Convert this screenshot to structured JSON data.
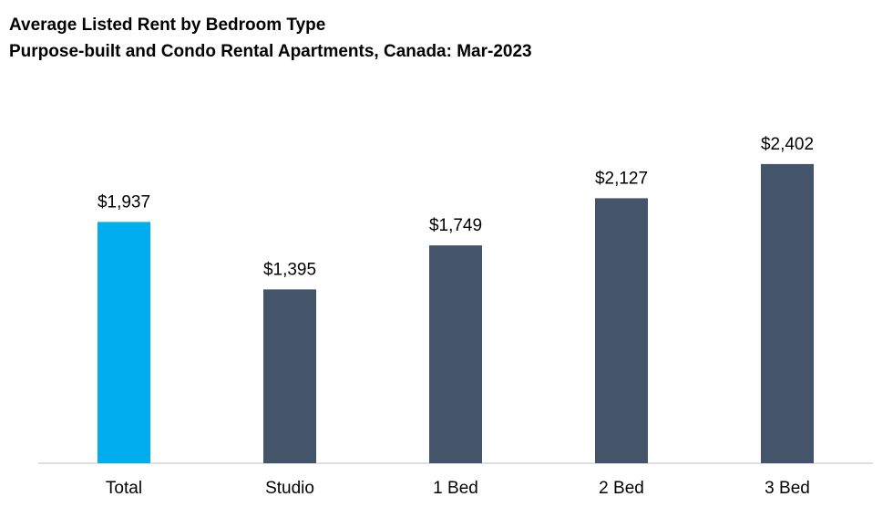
{
  "chart_data": {
    "type": "bar",
    "title": "Average Listed Rent by Bedroom Type",
    "subtitle": "Purpose-built and Condo Rental Apartments, Canada: Mar-2023",
    "categories": [
      "Total",
      "Studio",
      "1 Bed",
      "2 Bed",
      "3 Bed"
    ],
    "values": [
      1937,
      1395,
      1749,
      2127,
      2402
    ],
    "data_labels": [
      "$1,937",
      "$1,395",
      "$1,749",
      "$2,127",
      "$2,402"
    ],
    "bar_colors": [
      "#00aeef",
      "#44546a",
      "#44546a",
      "#44546a",
      "#44546a"
    ],
    "ylim": [
      0,
      2650
    ],
    "grid": false,
    "legend": "none"
  }
}
